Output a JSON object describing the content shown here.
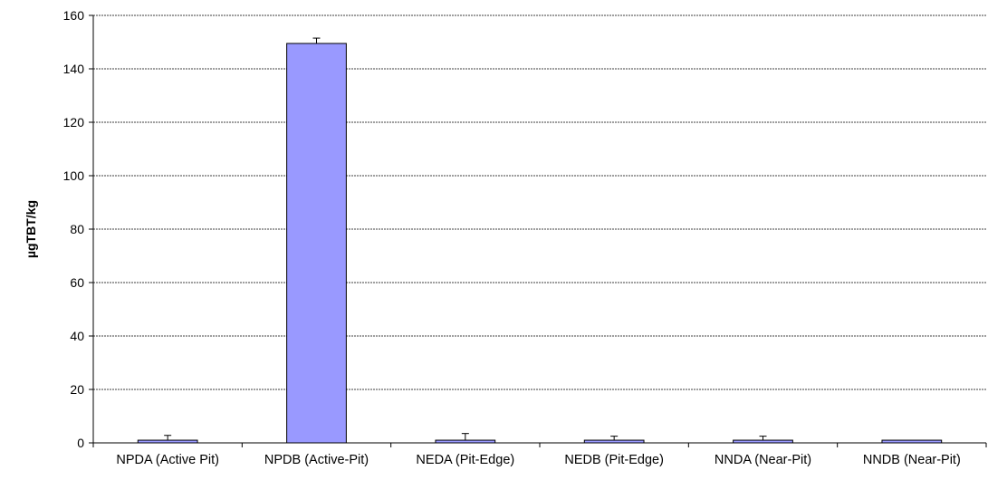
{
  "chart_data": {
    "type": "bar",
    "title": "",
    "xlabel": "",
    "ylabel": "µgTBT/kg",
    "ylim": [
      0,
      160
    ],
    "yticks": [
      0,
      20,
      40,
      60,
      80,
      100,
      120,
      140,
      160
    ],
    "grid": true,
    "legend": "none",
    "categories": [
      "NPDA (Active Pit)",
      "NPDB (Active-Pit)",
      "NEDA (Pit-Edge)",
      "NEDB (Pit-Edge)",
      "NNDA (Near-Pit)",
      "NNDB (Near-Pit)"
    ],
    "values": [
      1,
      149.5,
      1,
      1,
      1,
      1
    ],
    "error_upper": [
      1.8,
      2.0,
      2.5,
      1.5,
      1.5,
      0
    ],
    "colors": {
      "bar_fill": "#9999ff",
      "bar_stroke": "#000000",
      "grid": "#000000"
    }
  }
}
